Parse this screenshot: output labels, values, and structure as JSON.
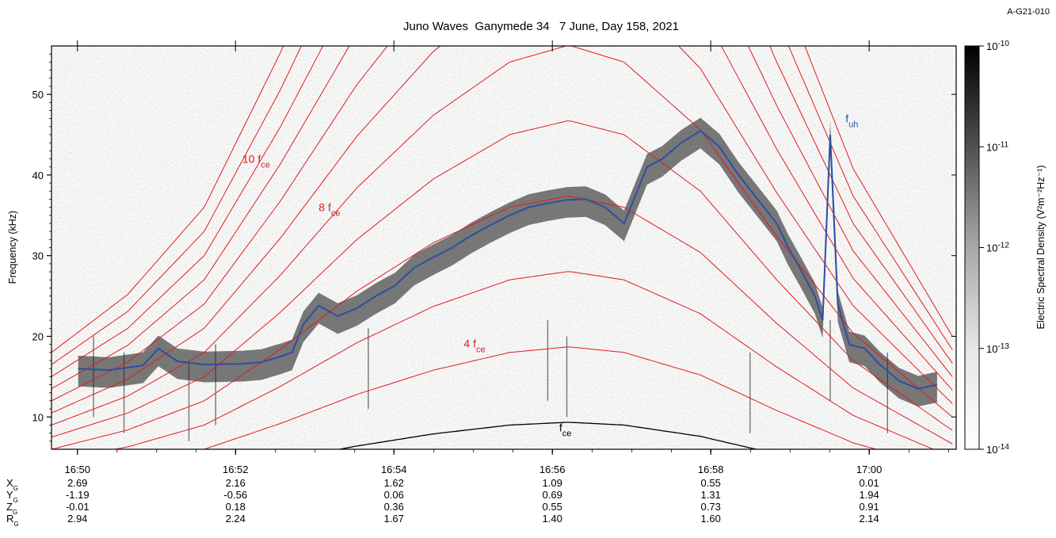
{
  "corner_id": "A-G21-010",
  "chart_data": {
    "type": "heatmap",
    "title": "Juno Waves  Ganymede 34   7 June, Day 158, 2021",
    "ylabel": "Frequency (kHz)",
    "colorbar_label": "Electric Spectral Density (V²m⁻²Hz⁻¹)",
    "x_minutes_range": [
      0,
      23.7
    ],
    "x_axis_start": "16:49:30",
    "ylim": [
      6,
      56
    ],
    "y_ticks": [
      10,
      20,
      30,
      40,
      50
    ],
    "x_ticks": [
      {
        "minutes": 0.68,
        "label": "16:50"
      },
      {
        "minutes": 4.82,
        "label": "16:52"
      },
      {
        "minutes": 8.97,
        "label": "16:54"
      },
      {
        "minutes": 13.12,
        "label": "16:56"
      },
      {
        "minutes": 17.27,
        "label": "16:58"
      },
      {
        "minutes": 21.42,
        "label": "17:00"
      }
    ],
    "colorbar": {
      "scale": "log",
      "range": [
        1e-14,
        1e-10
      ],
      "ticks": [
        {
          "value": "1e-10",
          "label": "10",
          "exp": "-10"
        },
        {
          "value": "1e-11",
          "label": "10",
          "exp": "-11"
        },
        {
          "value": "1e-12",
          "label": "10",
          "exp": "-12"
        },
        {
          "value": "1e-13",
          "label": "10",
          "exp": "-13"
        },
        {
          "value": "1e-14",
          "label": "10",
          "exp": "-14"
        }
      ]
    },
    "fce_peak_time_min": 13.55,
    "fce_curve": [
      [
        0,
        1.5
      ],
      [
        2,
        2.1
      ],
      [
        4,
        3.0
      ],
      [
        6,
        4.6
      ],
      [
        8,
        6.4
      ],
      [
        10,
        7.9
      ],
      [
        12,
        9.0
      ],
      [
        13.55,
        9.35
      ],
      [
        15,
        9.0
      ],
      [
        17,
        7.6
      ],
      [
        19,
        5.4
      ],
      [
        21,
        3.4
      ],
      [
        23.7,
        1.6
      ]
    ],
    "harmonics": [
      2,
      3,
      4,
      5,
      6,
      7,
      8,
      9,
      10,
      11,
      12
    ],
    "fuh_trace": [
      [
        0.7,
        16.0
      ],
      [
        1.5,
        15.8
      ],
      [
        2.4,
        16.4
      ],
      [
        2.8,
        18.5
      ],
      [
        3.3,
        16.9
      ],
      [
        4.0,
        16.5
      ],
      [
        5.0,
        16.6
      ],
      [
        5.5,
        16.8
      ],
      [
        6.0,
        17.5
      ],
      [
        6.3,
        18.0
      ],
      [
        6.6,
        21.5
      ],
      [
        7.0,
        23.8
      ],
      [
        7.5,
        22.5
      ],
      [
        8.0,
        23.5
      ],
      [
        8.5,
        25.0
      ],
      [
        9.0,
        26.3
      ],
      [
        9.5,
        28.5
      ],
      [
        10.0,
        29.8
      ],
      [
        10.5,
        31.0
      ],
      [
        11.0,
        32.5
      ],
      [
        11.5,
        33.8
      ],
      [
        12.0,
        35.0
      ],
      [
        12.5,
        36.0
      ],
      [
        13.0,
        36.5
      ],
      [
        13.5,
        36.9
      ],
      [
        14.0,
        37.0
      ],
      [
        14.5,
        36.0
      ],
      [
        15.0,
        34.0
      ],
      [
        15.6,
        41.0
      ],
      [
        16.0,
        42.0
      ],
      [
        16.5,
        44.0
      ],
      [
        17.0,
        45.5
      ],
      [
        17.5,
        43.5
      ],
      [
        18.0,
        40.0
      ],
      [
        18.5,
        37.0
      ],
      [
        19.0,
        34.0
      ],
      [
        19.3,
        31.0
      ],
      [
        19.6,
        28.5
      ],
      [
        20.0,
        25.0
      ],
      [
        20.2,
        22.0
      ],
      [
        20.4,
        45.0
      ],
      [
        20.6,
        24.0
      ],
      [
        20.9,
        19.0
      ],
      [
        21.3,
        18.5
      ],
      [
        21.7,
        16.5
      ],
      [
        22.2,
        14.5
      ],
      [
        22.7,
        13.5
      ],
      [
        23.2,
        14.0
      ]
    ],
    "annotations": [
      {
        "text": "10 f",
        "sub": "ce",
        "t": 5.0,
        "f": 41.5
      },
      {
        "text": "8 f",
        "sub": "ce",
        "t": 7.0,
        "f": 35.5
      },
      {
        "text": "4 f",
        "sub": "ce",
        "t": 10.8,
        "f": 18.6
      },
      {
        "text": "f",
        "sub": "ce",
        "t": 13.3,
        "f": 8.2
      },
      {
        "text": "f",
        "sub": "uh",
        "t": 20.8,
        "f": 46.5
      }
    ],
    "positions": {
      "labels": [
        "X",
        "Y",
        "Z",
        "R"
      ],
      "subscript": "G",
      "times": [
        "16:50",
        "16:52",
        "16:54",
        "16:56",
        "16:58",
        "17:00"
      ],
      "rows": [
        [
          "2.69",
          "2.16",
          "1.62",
          "1.09",
          "0.55",
          "0.01"
        ],
        [
          "-1.19",
          "-0.56",
          "0.06",
          "0.69",
          "1.31",
          "1.94"
        ],
        [
          "-0.01",
          "0.18",
          "0.36",
          "0.55",
          "0.73",
          "0.91"
        ],
        [
          "2.94",
          "2.24",
          "1.67",
          "1.40",
          "1.60",
          "2.14"
        ]
      ]
    },
    "colors": {
      "harmonic": "#e31a1c",
      "fce": "#000000",
      "fuh": "#2b4fa3",
      "label_red": "#e31a1c",
      "label_blue": "#2b4fa3"
    }
  }
}
